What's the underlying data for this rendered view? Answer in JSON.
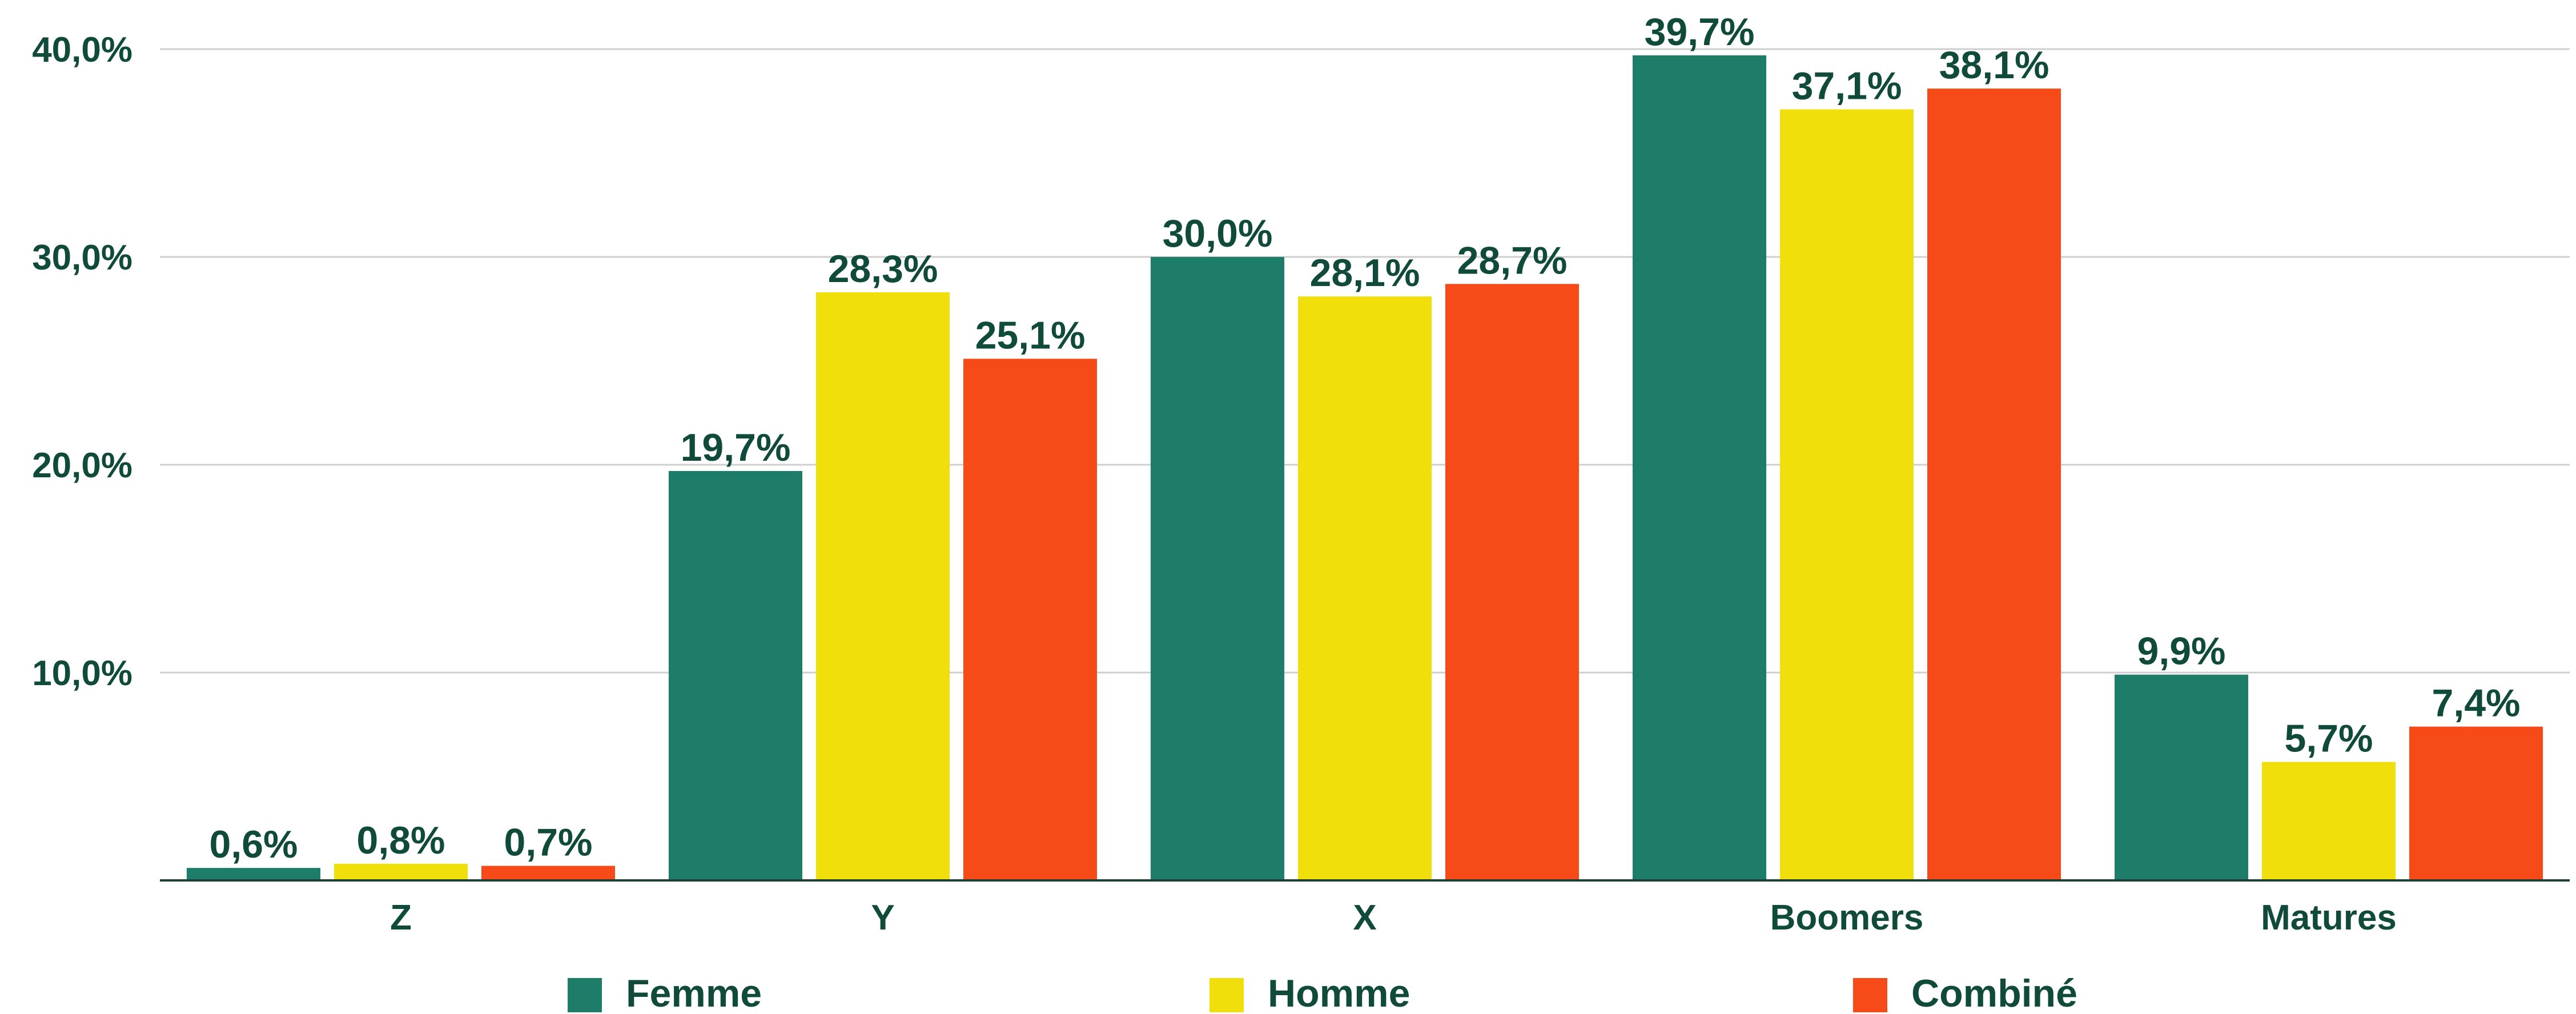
{
  "chart_data": {
    "type": "bar",
    "categories": [
      "Z",
      "Y",
      "X",
      "Boomers",
      "Matures"
    ],
    "series": [
      {
        "name": "Femme",
        "color": "#1e7d68",
        "values": [
          0.6,
          19.7,
          30.0,
          39.7,
          9.9
        ],
        "labels": [
          "0,6%",
          "19,7%",
          "30,0%",
          "39,7%",
          "9,9%"
        ]
      },
      {
        "name": "Homme",
        "color": "#f0df0b",
        "values": [
          0.8,
          28.3,
          28.1,
          37.1,
          5.7
        ],
        "labels": [
          "0,8%",
          "28,3%",
          "28,1%",
          "37,1%",
          "5,7%"
        ]
      },
      {
        "name": "Combiné",
        "color": "#f64a19",
        "values": [
          0.7,
          25.1,
          28.7,
          38.1,
          7.4
        ],
        "labels": [
          "0,7%",
          "25,1%",
          "28,7%",
          "38,1%",
          "7,4%"
        ]
      }
    ],
    "y_ticks": [
      {
        "value": 10,
        "label": "10,0%"
      },
      {
        "value": 20,
        "label": "20,0%"
      },
      {
        "value": 30,
        "label": "30,0%"
      },
      {
        "value": 40,
        "label": "40,0%"
      }
    ],
    "ylim": [
      0,
      40
    ],
    "grid": true,
    "legend_position": "bottom",
    "text_color": "#0f4a3a",
    "grid_color": "#cfcfcf",
    "axis_color": "#1f3f36"
  }
}
